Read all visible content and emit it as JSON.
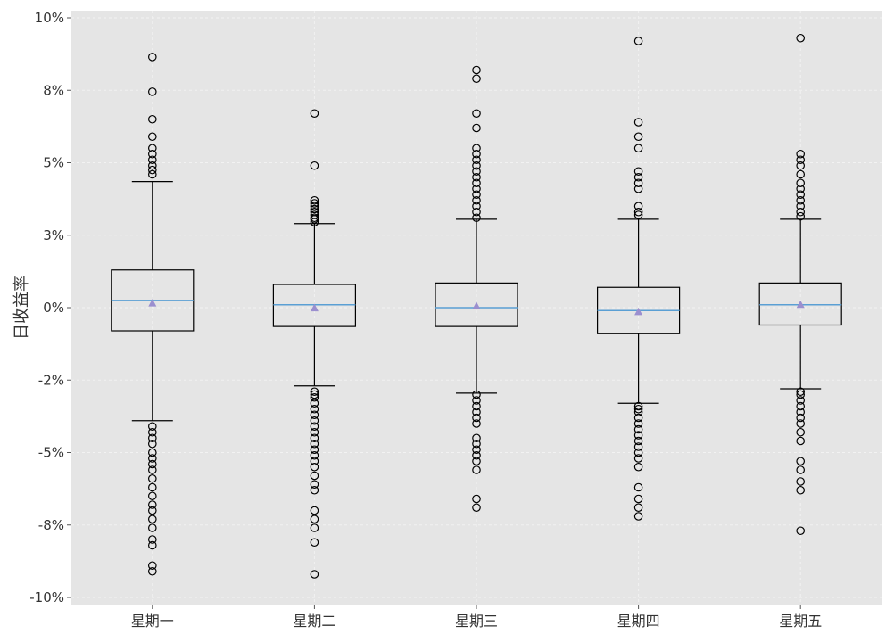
{
  "chart_data": {
    "type": "box",
    "title": "",
    "xlabel": "",
    "ylabel": "日收益率",
    "ylim": [
      -10,
      10
    ],
    "y_tick_values": [
      10,
      7.5,
      5,
      2.5,
      0,
      -2.5,
      -5,
      -7.5,
      -10
    ],
    "y_tick_labels": [
      "10%",
      "8%",
      "5%",
      "3%",
      "0%",
      "-2%",
      "-5%",
      "-8%",
      "-10%"
    ],
    "grid": true,
    "categories": [
      "星期一",
      "星期二",
      "星期三",
      "星期四",
      "星期五"
    ],
    "boxes": [
      {
        "category": "星期一",
        "whisker_high": 4.35,
        "q3": 1.3,
        "median": 0.25,
        "mean": 0.15,
        "q1": -0.8,
        "whisker_low": -3.9,
        "outliers_high": [
          8.65,
          7.45,
          6.5,
          5.9,
          5.5,
          5.3,
          5.1,
          4.9,
          4.75,
          4.6
        ],
        "outliers_low": [
          -4.1,
          -4.3,
          -4.5,
          -4.7,
          -5.0,
          -5.2,
          -5.4,
          -5.6,
          -5.9,
          -6.2,
          -6.5,
          -6.8,
          -7.0,
          -7.3,
          -7.6,
          -8.0,
          -8.2,
          -8.9,
          -9.1
        ]
      },
      {
        "category": "星期二",
        "whisker_high": 2.9,
        "q3": 0.8,
        "median": 0.1,
        "mean": -0.02,
        "q1": -0.65,
        "whisker_low": -2.7,
        "outliers_high": [
          6.7,
          4.9,
          3.7,
          3.6,
          3.5,
          3.4,
          3.3,
          3.2,
          3.1,
          3.05,
          2.95
        ],
        "outliers_low": [
          -2.9,
          -3.0,
          -3.1,
          -3.3,
          -3.5,
          -3.7,
          -3.9,
          -4.1,
          -4.3,
          -4.5,
          -4.7,
          -4.9,
          -5.1,
          -5.3,
          -5.5,
          -5.8,
          -6.1,
          -6.3,
          -7.0,
          -7.3,
          -7.6,
          -8.1,
          -9.2
        ]
      },
      {
        "category": "星期三",
        "whisker_high": 3.05,
        "q3": 0.85,
        "median": 0.0,
        "mean": 0.05,
        "q1": -0.65,
        "whisker_low": -2.95,
        "outliers_high": [
          8.2,
          7.9,
          6.7,
          6.2,
          5.5,
          5.3,
          5.1,
          4.9,
          4.7,
          4.5,
          4.3,
          4.1,
          3.9,
          3.7,
          3.5,
          3.3,
          3.1
        ],
        "outliers_low": [
          -3.0,
          -3.2,
          -3.4,
          -3.6,
          -3.8,
          -4.0,
          -4.5,
          -4.7,
          -4.9,
          -5.1,
          -5.3,
          -5.6,
          -6.6,
          -6.9
        ]
      },
      {
        "category": "星期四",
        "whisker_high": 3.05,
        "q3": 0.7,
        "median": -0.1,
        "mean": -0.15,
        "q1": -0.9,
        "whisker_low": -3.3,
        "outliers_high": [
          9.2,
          6.4,
          5.9,
          5.5,
          4.7,
          4.5,
          4.3,
          4.1,
          3.5,
          3.3,
          3.2
        ],
        "outliers_low": [
          -3.4,
          -3.5,
          -3.6,
          -3.8,
          -4.0,
          -4.2,
          -4.4,
          -4.6,
          -4.8,
          -5.0,
          -5.2,
          -5.5,
          -6.2,
          -6.6,
          -6.9,
          -7.2
        ]
      },
      {
        "category": "星期五",
        "whisker_high": 3.05,
        "q3": 0.85,
        "median": 0.1,
        "mean": 0.1,
        "q1": -0.6,
        "whisker_low": -2.8,
        "outliers_high": [
          9.3,
          5.3,
          5.1,
          4.9,
          4.6,
          4.3,
          4.1,
          3.9,
          3.7,
          3.5,
          3.3,
          3.15
        ],
        "outliers_low": [
          -2.9,
          -3.0,
          -3.2,
          -3.4,
          -3.6,
          -3.8,
          -4.0,
          -4.3,
          -4.6,
          -5.3,
          -5.6,
          -6.0,
          -6.3,
          -7.7
        ]
      }
    ],
    "colors": {
      "plot_background": "#e5e5e5",
      "grid": "#f2f2f2",
      "box_edge": "#000000",
      "median": "#5a9fd4",
      "mean_marker": "#9b8fcf",
      "outlier_edge": "#000000"
    }
  }
}
